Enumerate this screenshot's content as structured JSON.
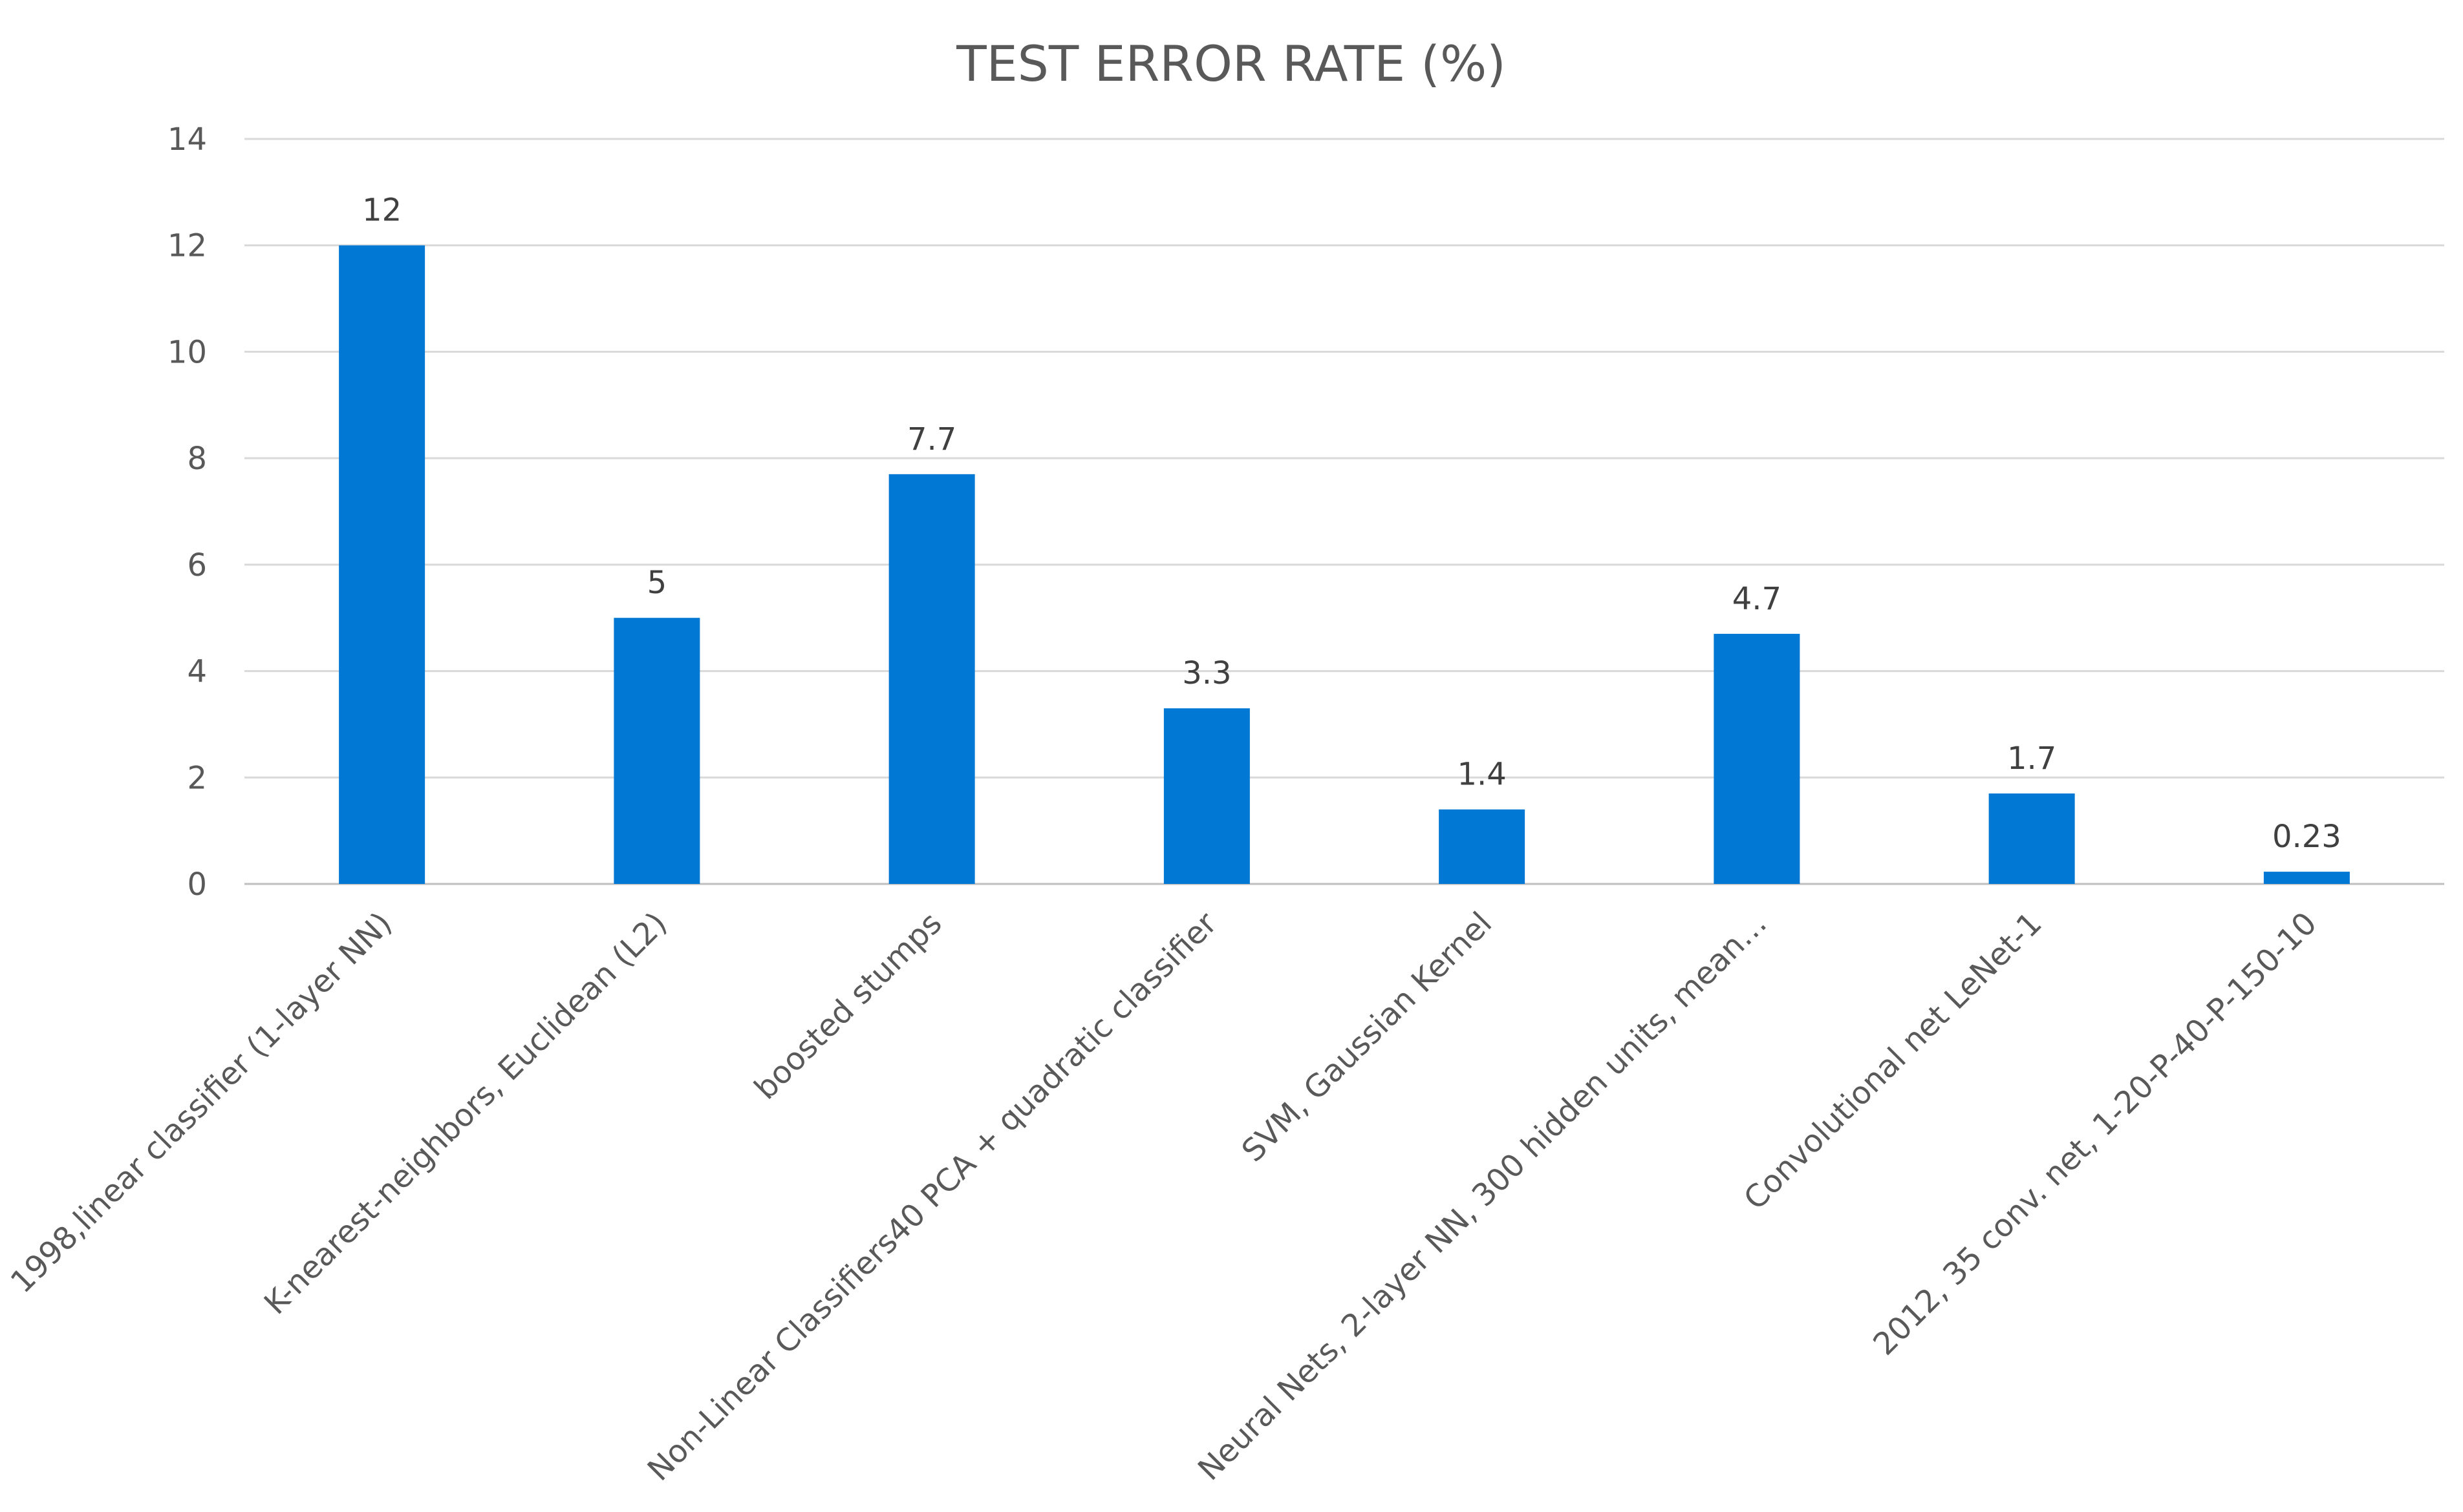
{
  "chart_data": {
    "type": "bar",
    "title": "TEST ERROR RATE (%)",
    "xlabel": "",
    "ylabel": "",
    "ylim": [
      0,
      14
    ],
    "yticks": [
      0,
      2,
      4,
      6,
      8,
      10,
      12,
      14
    ],
    "grid": true,
    "legend": "none",
    "bar_color": "#0078D4",
    "categories": [
      "1998,linear classifier (1-layer NN)",
      "K-nearest-neighbors, Euclidean (L2)",
      "boosted stumps",
      "Non-Linear Classifiers40 PCA + quadratic classifier",
      "SVM, Gaussian Kernel",
      "Neural Nets, 2-layer NN, 300 hidden units, mean…",
      "Convolutional net LeNet-1",
      "2012, 35 conv. net, 1-20-P-40-P-150-10"
    ],
    "values": [
      12,
      5,
      7.7,
      3.3,
      1.4,
      4.7,
      1.7,
      0.23
    ]
  }
}
